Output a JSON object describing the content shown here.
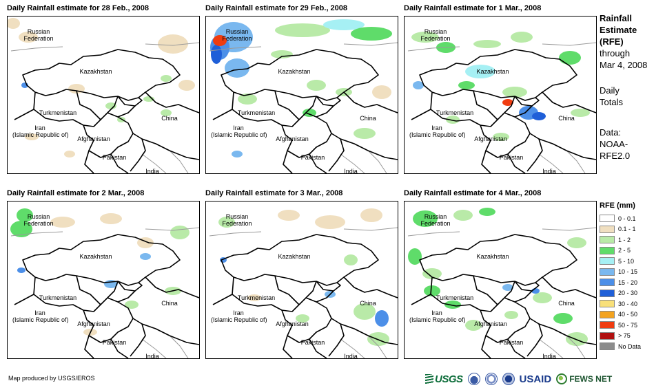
{
  "panels": [
    {
      "title": "Daily Rainfall estimate for 28 Feb., 2008"
    },
    {
      "title": "Daily Rainfall estimate for 29 Feb., 2008"
    },
    {
      "title": "Daily Rainfall estimate for 1 Mar., 2008"
    },
    {
      "title": "Daily Rainfall estimate for 2 Mar., 2008"
    },
    {
      "title": "Daily Rainfall estimate for 3 Mar., 2008"
    },
    {
      "title": "Daily Rainfall estimate for 4 Mar., 2008"
    }
  ],
  "map_labels": {
    "russia_line1": "Russian",
    "russia_line2": "Federation",
    "kazakhstan": "Kazakhstan",
    "turkmenistan": "Turkmenistan",
    "iran_line1": "Iran",
    "iran_line2": "(Islamic Republic of)",
    "afghanistan": "Afghanistan",
    "pakistan": "Pakistan",
    "china": "China",
    "india": "India"
  },
  "side": {
    "title_line1": "Rainfall",
    "title_line2": "Estimate",
    "title_line3": "(RFE)",
    "through_line1": "through",
    "through_line2": "Mar 4, 2008",
    "daily_line1": "Daily",
    "daily_line2": "Totals",
    "data_line1": "Data:",
    "data_line2": "NOAA-",
    "data_line3": "RFE2.0"
  },
  "legend": {
    "title": "RFE (mm)",
    "items": [
      {
        "label": "0 - 0.1",
        "color": "#ffffff"
      },
      {
        "label": "0.1 - 1",
        "color": "#f0dfc0"
      },
      {
        "label": "1 - 2",
        "color": "#b9eaa8"
      },
      {
        "label": "2 - 5",
        "color": "#5fdc6a"
      },
      {
        "label": "5 - 10",
        "color": "#a6f0f4"
      },
      {
        "label": "10 - 15",
        "color": "#7ab8ef"
      },
      {
        "label": "15 - 20",
        "color": "#4c8fe8"
      },
      {
        "label": "20 - 30",
        "color": "#1f5fd8"
      },
      {
        "label": "30 - 40",
        "color": "#f8e07a"
      },
      {
        "label": "40 - 50",
        "color": "#f3a320"
      },
      {
        "label": "50 - 75",
        "color": "#f03c10"
      },
      {
        "label": "> 75",
        "color": "#b01010"
      },
      {
        "label": "No Data",
        "color": "#8c8c8c"
      }
    ]
  },
  "footer": {
    "credit": "Map produced by USGS/EROS",
    "logo_usgs": "USGS",
    "logo_usaid": "USAID",
    "logo_fews": "FEWS NET"
  }
}
